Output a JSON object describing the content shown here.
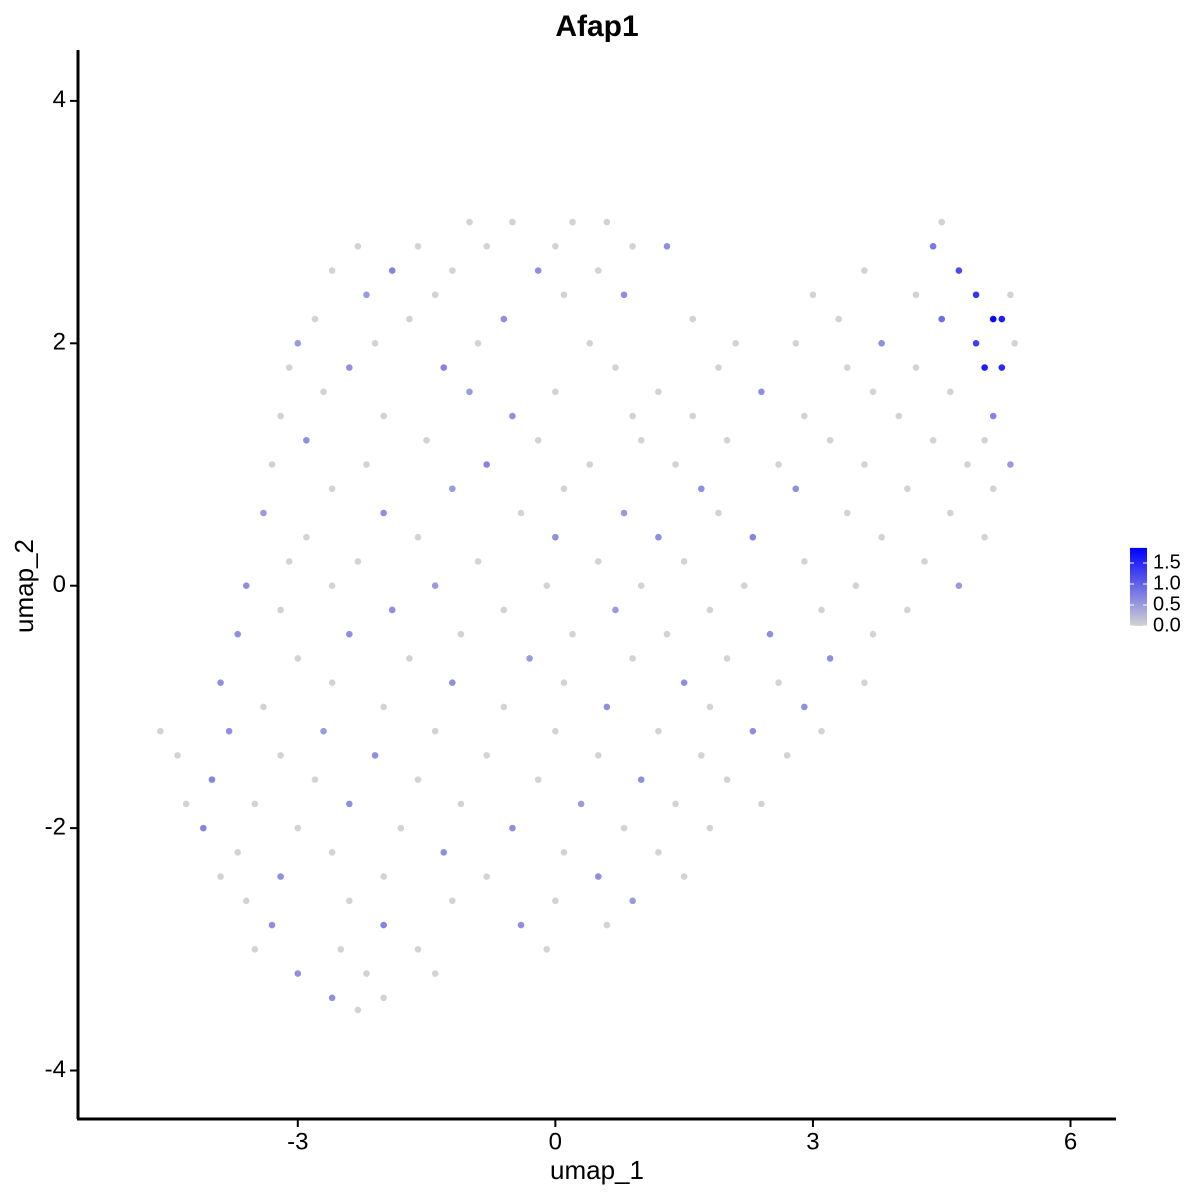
{
  "chart_data": {
    "type": "scatter",
    "title": "Afap1",
    "x_label": "umap_1",
    "y_label": "umap_2",
    "x": [
      -1.0,
      -0.5,
      0.2,
      0.6,
      4.5,
      -2.3,
      -1.6,
      -0.8,
      0.0,
      0.9,
      1.3,
      4.4,
      -2.6,
      -1.9,
      -1.2,
      -0.2,
      0.5,
      4.7,
      3.6,
      -2.2,
      -1.4,
      0.1,
      0.8,
      3.0,
      4.2,
      4.9,
      5.3,
      -2.8,
      -1.7,
      -0.6,
      1.6,
      3.3,
      4.5,
      5.1,
      5.2,
      -3.0,
      -2.1,
      -0.9,
      0.4,
      2.1,
      2.8,
      3.8,
      4.9,
      5.35,
      -3.1,
      -2.4,
      -1.3,
      0.7,
      1.9,
      3.4,
      4.2,
      5.0,
      5.2,
      -2.7,
      -1.0,
      0.0,
      1.2,
      2.4,
      3.7,
      4.6,
      -3.2,
      -2.0,
      -0.5,
      0.9,
      1.6,
      2.9,
      4.0,
      5.1,
      -2.9,
      -1.5,
      -0.2,
      1.0,
      2.0,
      3.2,
      4.4,
      5.0,
      -3.3,
      -2.2,
      -0.8,
      0.4,
      1.4,
      2.6,
      3.6,
      4.8,
      5.3,
      -2.6,
      -1.2,
      0.1,
      1.7,
      2.8,
      4.1,
      5.1,
      -3.4,
      -2.0,
      -0.4,
      0.8,
      1.9,
      3.4,
      4.6,
      -2.9,
      -1.6,
      0.0,
      1.2,
      2.3,
      3.8,
      5.0,
      -3.1,
      -2.3,
      -0.9,
      0.5,
      1.5,
      2.9,
      4.3,
      -3.6,
      -2.6,
      -1.4,
      -0.1,
      1.0,
      2.2,
      3.5,
      4.7,
      -3.2,
      -1.9,
      -0.6,
      0.7,
      1.8,
      3.1,
      4.1,
      -3.7,
      -2.4,
      -1.1,
      0.2,
      1.3,
      2.5,
      3.7,
      -3.0,
      -1.7,
      -0.3,
      0.9,
      2.0,
      3.2,
      -3.9,
      -2.6,
      -1.2,
      0.1,
      1.5,
      2.6,
      3.6,
      -3.4,
      -2.0,
      -0.6,
      0.6,
      1.8,
      2.9,
      -4.6,
      -3.8,
      -2.7,
      -1.4,
      0.0,
      1.2,
      2.3,
      3.1,
      -4.4,
      -3.2,
      -2.1,
      -0.8,
      0.5,
      1.7,
      2.7,
      -4.0,
      -2.8,
      -1.6,
      -0.2,
      1.0,
      2.0,
      -4.3,
      -3.5,
      -2.4,
      -1.1,
      0.3,
      1.4,
      2.4,
      -4.1,
      -3.0,
      -1.8,
      -0.5,
      0.8,
      1.8,
      -3.7,
      -2.6,
      -1.3,
      0.1,
      1.2,
      -3.9,
      -3.2,
      -2.0,
      -0.8,
      0.5,
      1.5,
      -3.6,
      -2.4,
      -1.2,
      0.0,
      0.9,
      -3.3,
      -2.0,
      -0.4,
      0.6,
      -3.5,
      -2.5,
      -1.6,
      -0.1,
      -3.0,
      -2.2,
      -1.4,
      -2.6,
      -2.0,
      -2.3
    ],
    "y": [
      3.0,
      3.0,
      3.0,
      3.0,
      3.0,
      2.8,
      2.8,
      2.8,
      2.8,
      2.8,
      2.8,
      2.8,
      2.6,
      2.6,
      2.6,
      2.6,
      2.6,
      2.6,
      2.6,
      2.4,
      2.4,
      2.4,
      2.4,
      2.4,
      2.4,
      2.4,
      2.4,
      2.2,
      2.2,
      2.2,
      2.2,
      2.2,
      2.2,
      2.2,
      2.2,
      2.0,
      2.0,
      2.0,
      2.0,
      2.0,
      2.0,
      2.0,
      2.0,
      2.0,
      1.8,
      1.8,
      1.8,
      1.8,
      1.8,
      1.8,
      1.8,
      1.8,
      1.8,
      1.6,
      1.6,
      1.6,
      1.6,
      1.6,
      1.6,
      1.6,
      1.4,
      1.4,
      1.4,
      1.4,
      1.4,
      1.4,
      1.4,
      1.4,
      1.2,
      1.2,
      1.2,
      1.2,
      1.2,
      1.2,
      1.2,
      1.2,
      1.0,
      1.0,
      1.0,
      1.0,
      1.0,
      1.0,
      1.0,
      1.0,
      1.0,
      0.8,
      0.8,
      0.8,
      0.8,
      0.8,
      0.8,
      0.8,
      0.6,
      0.6,
      0.6,
      0.6,
      0.6,
      0.6,
      0.6,
      0.4,
      0.4,
      0.4,
      0.4,
      0.4,
      0.4,
      0.4,
      0.2,
      0.2,
      0.2,
      0.2,
      0.2,
      0.2,
      0.2,
      0.0,
      0.0,
      0.0,
      0.0,
      0.0,
      0.0,
      0.0,
      0.0,
      -0.2,
      -0.2,
      -0.2,
      -0.2,
      -0.2,
      -0.2,
      -0.2,
      -0.4,
      -0.4,
      -0.4,
      -0.4,
      -0.4,
      -0.4,
      -0.4,
      -0.6,
      -0.6,
      -0.6,
      -0.6,
      -0.6,
      -0.6,
      -0.8,
      -0.8,
      -0.8,
      -0.8,
      -0.8,
      -0.8,
      -0.8,
      -1.0,
      -1.0,
      -1.0,
      -1.0,
      -1.0,
      -1.0,
      -1.2,
      -1.2,
      -1.2,
      -1.2,
      -1.2,
      -1.2,
      -1.2,
      -1.2,
      -1.4,
      -1.4,
      -1.4,
      -1.4,
      -1.4,
      -1.4,
      -1.4,
      -1.6,
      -1.6,
      -1.6,
      -1.6,
      -1.6,
      -1.6,
      -1.8,
      -1.8,
      -1.8,
      -1.8,
      -1.8,
      -1.8,
      -1.8,
      -2.0,
      -2.0,
      -2.0,
      -2.0,
      -2.0,
      -2.0,
      -2.2,
      -2.2,
      -2.2,
      -2.2,
      -2.2,
      -2.4,
      -2.4,
      -2.4,
      -2.4,
      -2.4,
      -2.4,
      -2.6,
      -2.6,
      -2.6,
      -2.6,
      -2.6,
      -2.8,
      -2.8,
      -2.8,
      -2.8,
      -3.0,
      -3.0,
      -3.0,
      -3.0,
      -3.2,
      -3.2,
      -3.2,
      -3.4,
      -3.4,
      -3.5
    ],
    "values": [
      0,
      0,
      0,
      0,
      0,
      0,
      0,
      0,
      0,
      0,
      0.6,
      0.8,
      0,
      0.7,
      0,
      0.6,
      0,
      1.2,
      0,
      0.5,
      0,
      0,
      0.6,
      0,
      0,
      1.4,
      0,
      0,
      0,
      0.6,
      0,
      0,
      0.9,
      1.8,
      1.6,
      0.5,
      0,
      0,
      0,
      0,
      0,
      0.6,
      1.3,
      0,
      0,
      0.6,
      0.7,
      0,
      0,
      0,
      0,
      1.6,
      1.5,
      0,
      0.5,
      0,
      0,
      0.6,
      0,
      0,
      0,
      0,
      0.6,
      0,
      0,
      0,
      0,
      0.7,
      0.6,
      0,
      0,
      0,
      0,
      0,
      0,
      0,
      0,
      0,
      0.7,
      0,
      0,
      0,
      0,
      0,
      0.5,
      0,
      0.5,
      0,
      0.6,
      0.6,
      0,
      0,
      0.5,
      0.6,
      0,
      0.5,
      0,
      0,
      0,
      0,
      0,
      0.6,
      0.6,
      0.7,
      0,
      0,
      0,
      0,
      0,
      0,
      0,
      0,
      0,
      0.6,
      0,
      0.5,
      0,
      0,
      0,
      0,
      0.5,
      0,
      0.6,
      0,
      0.5,
      0,
      0,
      0,
      0.6,
      0.6,
      0,
      0,
      0,
      0.6,
      0,
      0,
      0,
      0.5,
      0,
      0,
      0.6,
      0.6,
      0,
      0.6,
      0,
      0.6,
      0,
      0,
      0,
      0,
      0,
      0.6,
      0,
      0.6,
      0,
      0.6,
      0.5,
      0,
      0,
      0,
      0.6,
      0,
      0,
      0,
      0.6,
      0,
      0,
      0,
      0,
      0.7,
      0,
      0,
      0,
      0.6,
      0,
      0,
      0,
      0.6,
      0,
      0.5,
      0,
      0,
      0.7,
      0,
      0,
      0.6,
      0,
      0,
      0,
      0,
      0.6,
      0,
      0,
      0,
      0.6,
      0,
      0,
      0.6,
      0,
      0,
      0,
      0,
      0,
      0.5,
      0.6,
      0.7,
      0.6,
      0,
      0,
      0,
      0,
      0,
      0.6,
      0,
      0,
      0.6,
      0,
      0
    ],
    "xlim": [
      -5.56,
      6.53
    ],
    "ylim": [
      -4.4,
      4.42
    ],
    "xticks": [
      -3,
      0,
      3,
      6
    ],
    "yticks": [
      -4,
      -2,
      0,
      2,
      4
    ],
    "color_low": "#d3d3d3",
    "color_high": "#0000ff",
    "colorlim": [
      0,
      1.86
    ],
    "color_ticks": [
      {
        "value": 0,
        "label": "0.0"
      },
      {
        "value": 0.5,
        "label": "0.5"
      },
      {
        "value": 1,
        "label": "1.0"
      },
      {
        "value": 1.5,
        "label": "1.5"
      }
    ]
  }
}
